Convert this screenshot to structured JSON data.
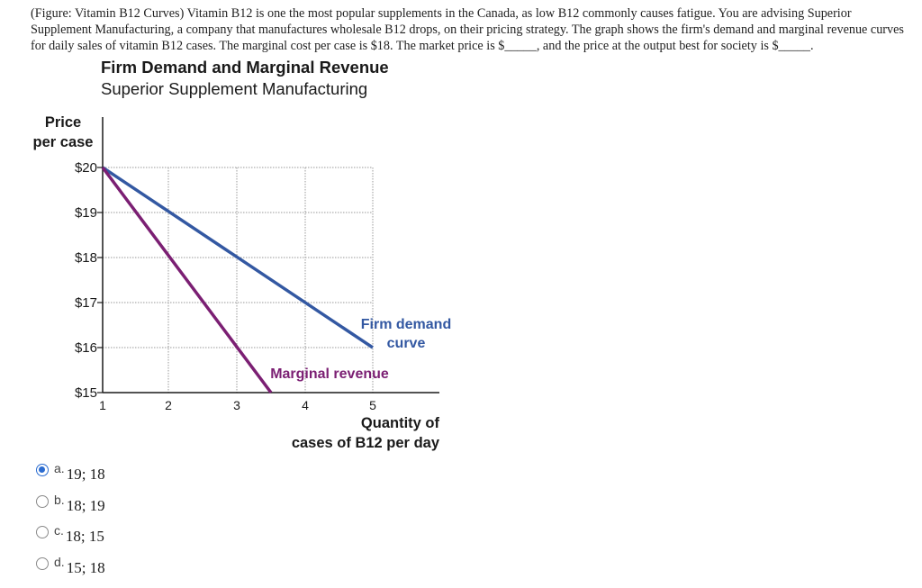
{
  "question": {
    "text": "(Figure: Vitamin B12 Curves) Vitamin B12 is one the most popular supplements in the Canada, as low B12 commonly causes fatigue. You are advising Superior Supplement Manufacturing, a company that manufactures wholesale B12 drops, on their pricing strategy. The graph shows the firm's demand and marginal revenue curves for daily sales of vitamin B12 cases. The marginal cost per case is $18. The market price is $_____, and the price at the output best for society is $_____."
  },
  "chart_data": {
    "type": "line",
    "title": "Firm Demand and Marginal Revenue",
    "subtitle": "Superior Supplement Manufacturing",
    "ylabel": [
      "Price",
      "per case"
    ],
    "xlabel": [
      "Quantity of",
      "cases of B12 per day"
    ],
    "x_ticks": [
      1,
      2,
      3,
      4,
      5
    ],
    "x_tick_labels": [
      "1",
      "2",
      "3",
      "4",
      "5"
    ],
    "y_ticks": [
      15,
      16,
      17,
      18,
      19,
      20
    ],
    "y_tick_labels": [
      "$15",
      "$16",
      "$17",
      "$18",
      "$19",
      "$20"
    ],
    "xlim": [
      1,
      5
    ],
    "ylim": [
      15,
      20
    ],
    "grid": true,
    "series": [
      {
        "name": "Firm demand curve",
        "label_lines": [
          "Firm demand",
          "curve"
        ],
        "color": "#3358a2",
        "x": [
          1,
          5
        ],
        "y": [
          20,
          16
        ]
      },
      {
        "name": "Marginal revenue",
        "label_lines": [
          "Marginal revenue"
        ],
        "color": "#7b1f73",
        "x": [
          1,
          3.5
        ],
        "y": [
          20,
          15
        ]
      }
    ]
  },
  "options": [
    {
      "letter": "a.",
      "text": "19; 18",
      "selected": true
    },
    {
      "letter": "b.",
      "text": "18; 19",
      "selected": false
    },
    {
      "letter": "c.",
      "text": "18; 15",
      "selected": false
    },
    {
      "letter": "d.",
      "text": "15; 18",
      "selected": false
    }
  ]
}
